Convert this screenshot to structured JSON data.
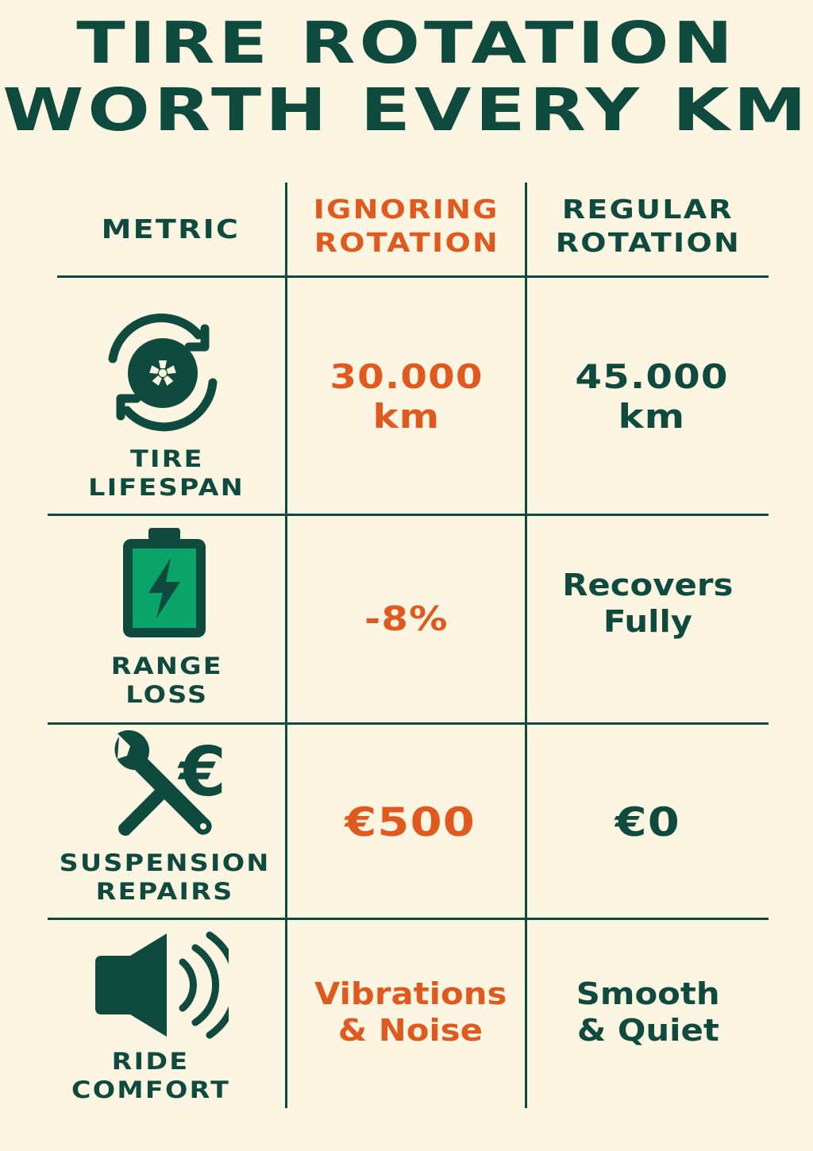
{
  "title": {
    "line1": "TIRE ROTATION",
    "line2": "WORTH EVERY KM"
  },
  "colors": {
    "background": "#fcf5e1",
    "primary": "#0e4a3d",
    "accent": "#e05a1f",
    "battery_fill": "#0aa36a"
  },
  "header": {
    "metric": "METRIC",
    "ignoring": {
      "line1": "IGNORING",
      "line2": "ROTATION"
    },
    "regular": {
      "line1": "REGULAR",
      "line2": "ROTATION"
    }
  },
  "rows": [
    {
      "icon": "tire-rotation-icon",
      "label": {
        "line1": "TIRE",
        "line2": "LIFESPAN"
      },
      "ignoring": {
        "line1": "30.000",
        "line2": "km"
      },
      "regular": {
        "line1": "45.000",
        "line2": "km"
      }
    },
    {
      "icon": "battery-charging-icon",
      "label": {
        "line1": "RANGE",
        "line2": "LOSS"
      },
      "ignoring": {
        "line1": "-8%",
        "line2": ""
      },
      "regular": {
        "line1": "Recovers",
        "line2": "Fully"
      }
    },
    {
      "icon": "wrench-euro-icon",
      "label": {
        "line1": "SUSPENSION",
        "line2": "REPAIRS"
      },
      "ignoring": {
        "line1": "€500",
        "line2": ""
      },
      "regular": {
        "line1": "€0",
        "line2": ""
      }
    },
    {
      "icon": "speaker-sound-icon",
      "label": {
        "line1": "RIDE",
        "line2": "COMFORT"
      },
      "ignoring": {
        "line1": "Vibrations",
        "line2": "& Noise"
      },
      "regular": {
        "line1": "Smooth",
        "line2": "& Quiet"
      }
    }
  ]
}
